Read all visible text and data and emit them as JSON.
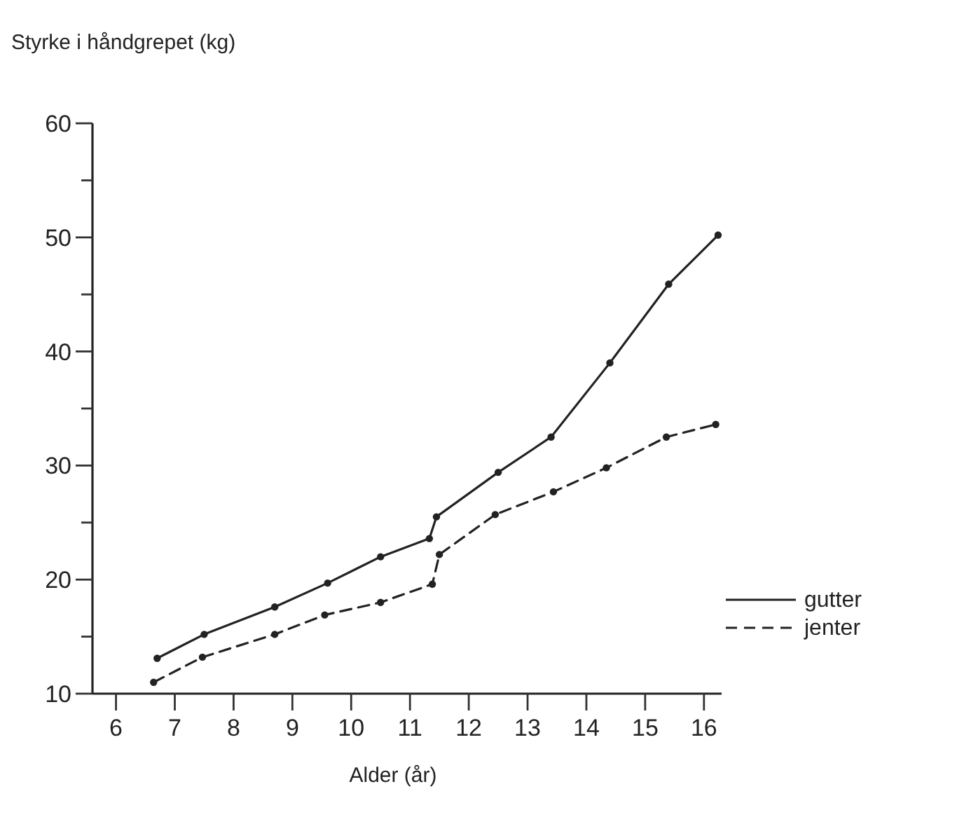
{
  "chart_data": {
    "type": "line",
    "ylabel": "Styrke i håndgrepet (kg)",
    "xlabel": "Alder (år)",
    "xlim": [
      5.6,
      16.3
    ],
    "xticks": [
      6,
      7,
      8,
      9,
      10,
      11,
      12,
      13,
      14,
      15,
      16
    ],
    "ylim": [
      10,
      60
    ],
    "yticks": [
      10,
      {
        "value": 15,
        "label": null
      },
      20,
      {
        "value": 25,
        "label": null
      },
      30,
      {
        "value": 35,
        "label": null
      },
      40,
      {
        "value": 45,
        "label": null
      },
      50,
      {
        "value": 55,
        "label": null
      },
      60
    ],
    "legend": "right",
    "marker": "circle",
    "grid": false,
    "series": [
      {
        "name": "gutter",
        "color": "#222222",
        "line_style": "solid",
        "x": [
          6.7,
          7.5,
          8.7,
          9.6,
          10.5,
          11.33,
          11.45,
          12.5,
          13.4,
          14.4,
          15.4,
          16.24
        ],
        "values": [
          13.1,
          15.2,
          17.6,
          19.7,
          22,
          23.6,
          25.5,
          29.4,
          32.5,
          39,
          45.9,
          50.2
        ]
      },
      {
        "name": "jenter",
        "color": "#222222",
        "line_style": "dashed",
        "x": [
          6.64,
          7.47,
          8.7,
          9.55,
          10.5,
          11.38,
          11.5,
          12.45,
          13.44,
          14.34,
          15.36,
          16.2
        ],
        "values": [
          11,
          13.2,
          15.2,
          16.9,
          18,
          19.6,
          22.2,
          25.7,
          27.7,
          29.8,
          32.5,
          33.6
        ]
      }
    ]
  }
}
